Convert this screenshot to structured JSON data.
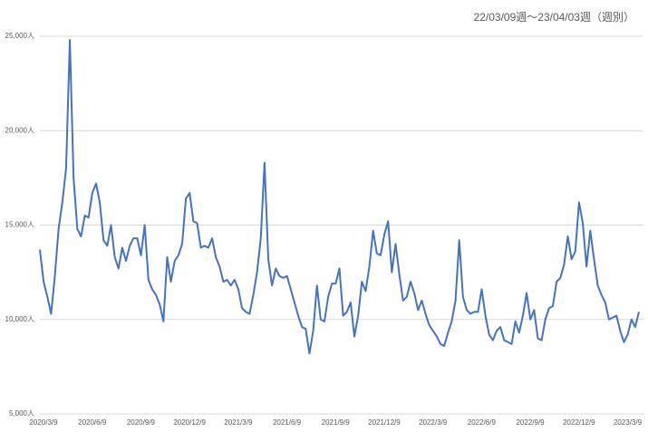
{
  "chart_data": {
    "type": "line",
    "title": "22/03/09週〜23/04/03週（週別）",
    "categories": [
      "2020/3/9",
      null,
      null,
      null,
      null,
      null,
      null,
      null,
      null,
      null,
      null,
      null,
      null,
      "2020/6/9",
      null,
      null,
      null,
      null,
      null,
      null,
      null,
      null,
      null,
      null,
      null,
      null,
      "2020/9/9",
      null,
      null,
      null,
      null,
      null,
      null,
      null,
      null,
      null,
      null,
      null,
      null,
      "2020/12/9",
      null,
      null,
      null,
      null,
      null,
      null,
      null,
      null,
      null,
      null,
      null,
      null,
      "2021/3/9",
      null,
      null,
      null,
      null,
      null,
      null,
      null,
      null,
      null,
      null,
      null,
      null,
      "2021/6/9",
      null,
      null,
      null,
      null,
      null,
      null,
      null,
      null,
      null,
      null,
      null,
      null,
      "2021/9/9",
      null,
      null,
      null,
      null,
      null,
      null,
      null,
      null,
      null,
      null,
      null,
      null,
      "2021/12/9",
      null,
      null,
      null,
      null,
      null,
      null,
      null,
      null,
      null,
      null,
      null,
      null,
      "2022/3/9",
      null,
      null,
      null,
      null,
      null,
      null,
      null,
      null,
      null,
      null,
      null,
      null,
      "2022/6/9",
      null,
      null,
      null,
      null,
      null,
      null,
      null,
      null,
      null,
      null,
      null,
      null,
      "2022/9/9",
      null,
      null,
      null,
      null,
      null,
      null,
      null,
      null,
      null,
      null,
      null,
      null,
      "2022/12/9",
      null,
      null,
      null,
      null,
      null,
      null,
      null,
      null,
      null,
      null,
      null,
      null,
      "2023/3/9",
      null,
      null,
      null,
      null
    ],
    "series": [
      {
        "name": "週別",
        "color": "#4472c4",
        "values": [
          13700,
          12000,
          11200,
          10300,
          12300,
          14800,
          16200,
          18000,
          24800,
          17500,
          14800,
          14400,
          15500,
          15400,
          16700,
          17200,
          16200,
          14200,
          13900,
          15000,
          13300,
          12700,
          13800,
          13100,
          13900,
          14300,
          14300,
          13400,
          15000,
          12100,
          11600,
          11300,
          10800,
          9900,
          13300,
          12000,
          13100,
          13400,
          14000,
          16400,
          16700,
          15200,
          15100,
          13800,
          13900,
          13800,
          14300,
          13300,
          12800,
          12000,
          12100,
          11800,
          12100,
          11600,
          10600,
          10400,
          10300,
          11300,
          12500,
          14300,
          18300,
          13200,
          11800,
          12700,
          12300,
          12200,
          12300,
          11600,
          10900,
          10200,
          9600,
          9500,
          8200,
          9400,
          11800,
          10000,
          9900,
          11200,
          11900,
          11900,
          12700,
          10200,
          10400,
          10900,
          9100,
          10200,
          12000,
          11500,
          12800,
          14700,
          13500,
          13400,
          14500,
          15200,
          12500,
          14000,
          12400,
          11000,
          11200,
          12000,
          11400,
          10500,
          11000,
          10300,
          9700,
          9400,
          9100,
          8700,
          8600,
          9300,
          9900,
          11000,
          14200,
          11200,
          10500,
          10300,
          10400,
          10400,
          11600,
          10200,
          9200,
          8900,
          9400,
          9600,
          8900,
          8800,
          8700,
          9900,
          9300,
          10200,
          11400,
          10000,
          10500,
          9000,
          8900,
          10000,
          10600,
          10700,
          12000,
          12200,
          12900,
          14400,
          13200,
          13600,
          16200,
          15100,
          12800,
          14700,
          13200,
          11800,
          11300,
          10900,
          10000,
          10100,
          10200,
          9400,
          8800,
          9200,
          10000,
          9600,
          10400
        ]
      }
    ],
    "ylim": [
      5000,
      25000
    ],
    "yticks": [
      {
        "value": 5000,
        "label": "5,000人"
      },
      {
        "value": 10000,
        "label": "10,000人"
      },
      {
        "value": 15000,
        "label": "15,000人"
      },
      {
        "value": 20000,
        "label": "20,000人"
      },
      {
        "value": 25000,
        "label": "25,000人"
      }
    ],
    "grid": true
  }
}
